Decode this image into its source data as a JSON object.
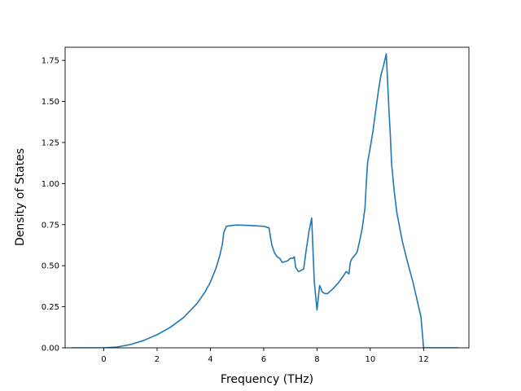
{
  "chart_data": {
    "type": "line",
    "title": "",
    "xlabel": "Frequency (THz)",
    "ylabel": "Density of States",
    "xlim": [
      -1.45,
      13.7
    ],
    "ylim": [
      0.0,
      1.83
    ],
    "xticks": [
      0,
      2,
      4,
      6,
      8,
      10,
      12
    ],
    "xtick_labels": [
      "0",
      "2",
      "4",
      "6",
      "8",
      "10",
      "12"
    ],
    "yticks": [
      0.0,
      0.25,
      0.5,
      0.75,
      1.0,
      1.25,
      1.5,
      1.75
    ],
    "ytick_labels": [
      "0.00",
      "0.25",
      "0.50",
      "0.75",
      "1.00",
      "1.25",
      "1.50",
      "1.75"
    ],
    "grid": false,
    "legend": "none",
    "series": [
      {
        "color": "#1f77b4",
        "x": [
          -1.2,
          -0.5,
          0.0,
          0.5,
          1.0,
          1.5,
          2.0,
          2.5,
          3.0,
          3.5,
          3.8,
          4.0,
          4.2,
          4.35,
          4.45,
          4.5,
          4.6,
          4.8,
          5.0,
          5.5,
          6.0,
          6.2,
          6.25,
          6.3,
          6.4,
          6.5,
          6.6,
          6.7,
          6.8,
          6.9,
          7.0,
          7.1,
          7.15,
          7.2,
          7.3,
          7.4,
          7.5,
          7.6,
          7.7,
          7.8,
          7.9,
          8.0,
          8.1,
          8.2,
          8.3,
          8.4,
          8.6,
          8.8,
          9.0,
          9.1,
          9.2,
          9.25,
          9.3,
          9.5,
          9.6,
          9.7,
          9.8,
          9.85,
          9.9,
          10.0,
          10.1,
          10.2,
          10.3,
          10.4,
          10.5,
          10.6,
          10.7,
          10.75,
          10.8,
          10.9,
          11.0,
          11.2,
          11.4,
          11.6,
          11.8,
          11.9,
          12.0,
          12.1,
          12.5,
          13.0,
          13.3
        ],
        "y": [
          0.0,
          0.0,
          0.0,
          0.005,
          0.02,
          0.045,
          0.08,
          0.125,
          0.185,
          0.27,
          0.34,
          0.4,
          0.48,
          0.56,
          0.63,
          0.7,
          0.74,
          0.745,
          0.748,
          0.745,
          0.74,
          0.73,
          0.68,
          0.63,
          0.58,
          0.555,
          0.545,
          0.52,
          0.525,
          0.53,
          0.545,
          0.545,
          0.555,
          0.49,
          0.465,
          0.47,
          0.48,
          0.6,
          0.71,
          0.79,
          0.4,
          0.23,
          0.38,
          0.34,
          0.33,
          0.33,
          0.36,
          0.395,
          0.44,
          0.465,
          0.45,
          0.52,
          0.54,
          0.58,
          0.65,
          0.73,
          0.85,
          1.0,
          1.13,
          1.22,
          1.32,
          1.44,
          1.56,
          1.66,
          1.72,
          1.79,
          1.45,
          1.3,
          1.12,
          0.95,
          0.82,
          0.65,
          0.52,
          0.4,
          0.26,
          0.19,
          0.0,
          0.0,
          0.0,
          0.0,
          0.0
        ]
      }
    ]
  }
}
